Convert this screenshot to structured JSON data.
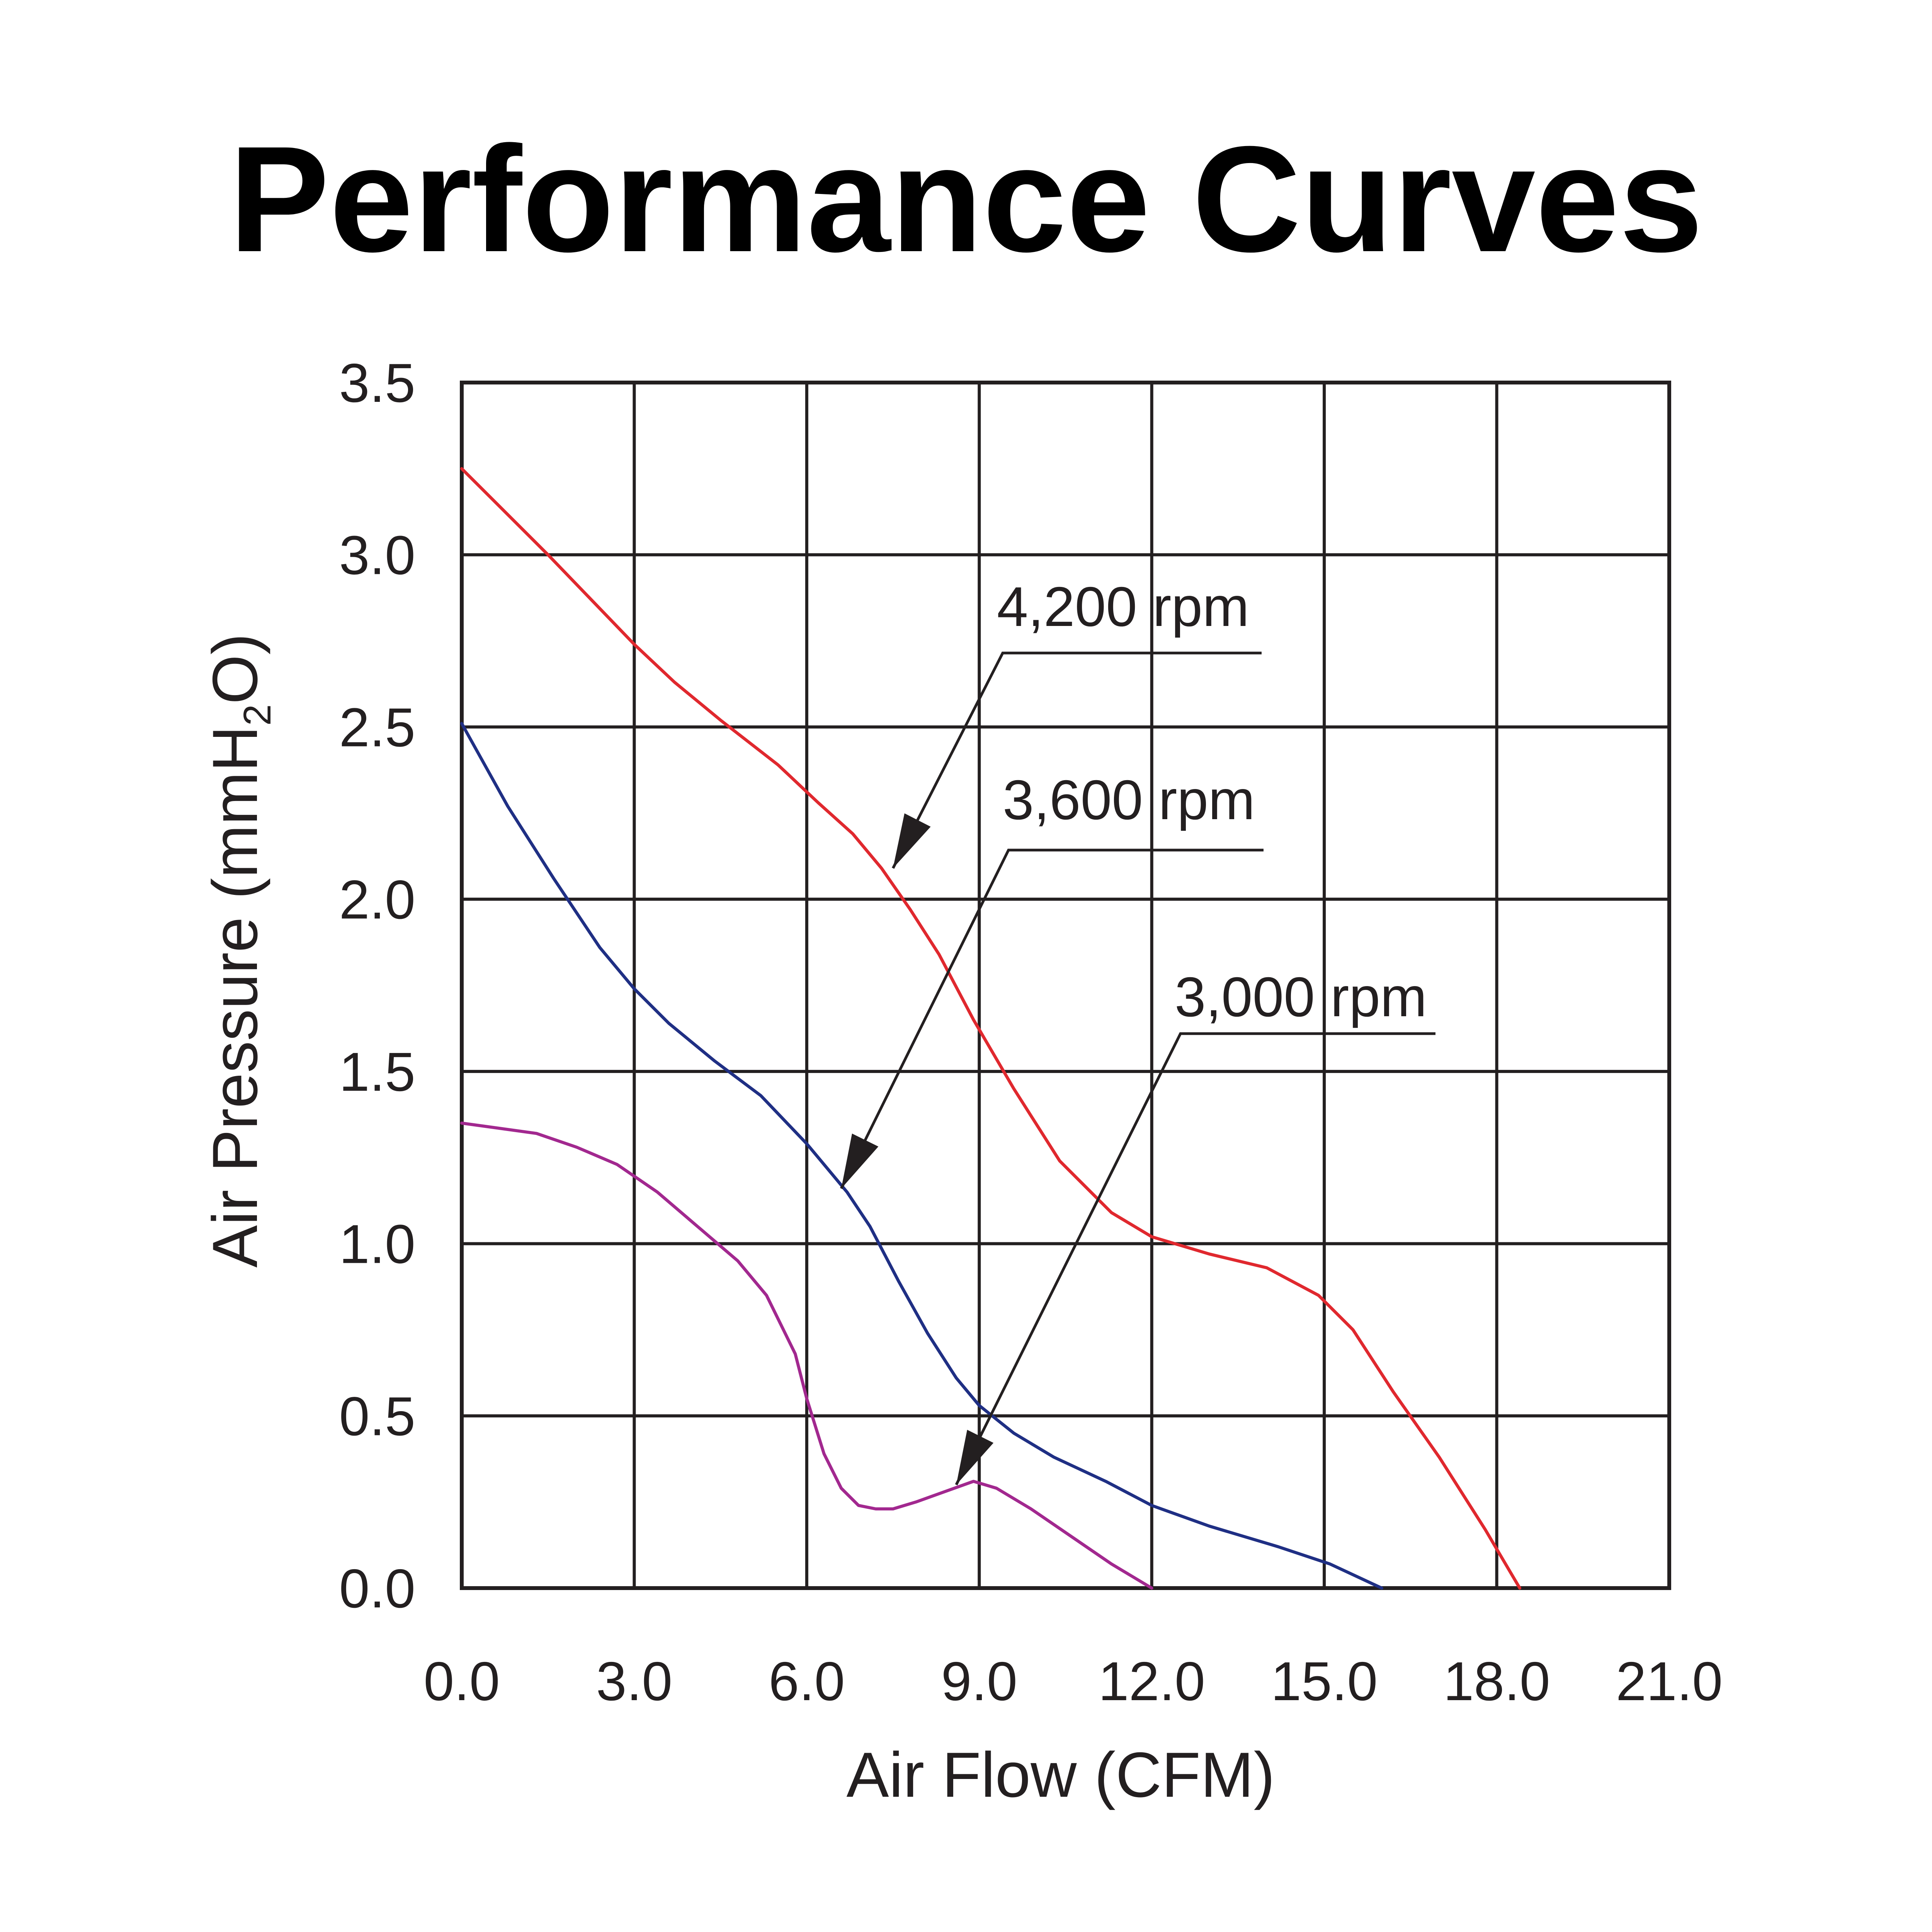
{
  "chart_data": {
    "type": "line",
    "title": "Performance Curves",
    "xlabel": "Air Flow (CFM)",
    "ylabel_main": "Air Pressure (mmH",
    "ylabel_sub": "2",
    "ylabel_end": "O)",
    "xlim": [
      0,
      21
    ],
    "ylim": [
      0,
      3.5
    ],
    "grid": true,
    "x_ticks": [
      0,
      3,
      6,
      9,
      12,
      15,
      18,
      21
    ],
    "y_ticks": [
      0,
      0.5,
      1.0,
      1.5,
      2.0,
      2.5,
      3.0,
      3.5
    ],
    "x_tick_labels": [
      "0.0",
      "3.0",
      "6.0",
      "9.0",
      "12.0",
      "15.0",
      "18.0",
      "21.0"
    ],
    "y_tick_labels": [
      "0.0",
      "0.5",
      "1.0",
      "1.5",
      "2.0",
      "2.5",
      "3.0",
      "3.5"
    ],
    "series": [
      {
        "name": "4,200 rpm",
        "color": "#e0282e",
        "x": [
          0.0,
          1.5,
          3.0,
          3.7,
          4.5,
          5.5,
          6.2,
          6.8,
          7.3,
          7.8,
          8.3,
          8.9,
          9.6,
          10.4,
          11.3,
          12.0,
          13.0,
          14.0,
          14.9,
          15.5,
          16.2,
          17.0,
          17.8,
          18.4
        ],
        "y": [
          3.25,
          3.0,
          2.74,
          2.63,
          2.52,
          2.39,
          2.28,
          2.19,
          2.09,
          1.97,
          1.84,
          1.65,
          1.45,
          1.24,
          1.09,
          1.02,
          0.97,
          0.93,
          0.85,
          0.75,
          0.57,
          0.38,
          0.17,
          0.0
        ]
      },
      {
        "name": "3,600 rpm",
        "color": "#1f2f84",
        "x": [
          0.0,
          0.8,
          1.6,
          2.4,
          3.0,
          3.6,
          4.4,
          5.2,
          6.0,
          6.7,
          7.1,
          7.6,
          8.1,
          8.6,
          9.0,
          9.6,
          10.3,
          11.2,
          12.0,
          13.0,
          14.2,
          15.1,
          16.0
        ],
        "y": [
          2.51,
          2.27,
          2.06,
          1.86,
          1.74,
          1.64,
          1.53,
          1.43,
          1.29,
          1.15,
          1.05,
          0.89,
          0.74,
          0.61,
          0.53,
          0.45,
          0.38,
          0.31,
          0.24,
          0.18,
          0.12,
          0.07,
          0.0
        ]
      },
      {
        "name": "3,000 rpm",
        "color": "#a2288f",
        "x": [
          0.0,
          1.3,
          2.0,
          2.7,
          3.4,
          4.1,
          4.8,
          5.3,
          5.8,
          6.0,
          6.3,
          6.6,
          6.9,
          7.2,
          7.5,
          7.9,
          8.4,
          8.9,
          9.3,
          9.9,
          10.6,
          11.3,
          12.0
        ],
        "y": [
          1.35,
          1.32,
          1.28,
          1.23,
          1.15,
          1.05,
          0.95,
          0.85,
          0.68,
          0.55,
          0.39,
          0.29,
          0.24,
          0.23,
          0.23,
          0.25,
          0.28,
          0.31,
          0.29,
          0.23,
          0.15,
          0.07,
          0.0
        ]
      }
    ],
    "annotations": [
      {
        "text": "4,200 rpm",
        "series": "4,200 rpm",
        "target": [
          7.5,
          2.09
        ]
      },
      {
        "text": "3,600 rpm",
        "series": "3,600 rpm",
        "target": [
          6.6,
          1.16
        ]
      },
      {
        "text": "3,000 rpm",
        "series": "3,000 rpm",
        "target": [
          8.6,
          0.3
        ]
      }
    ]
  }
}
